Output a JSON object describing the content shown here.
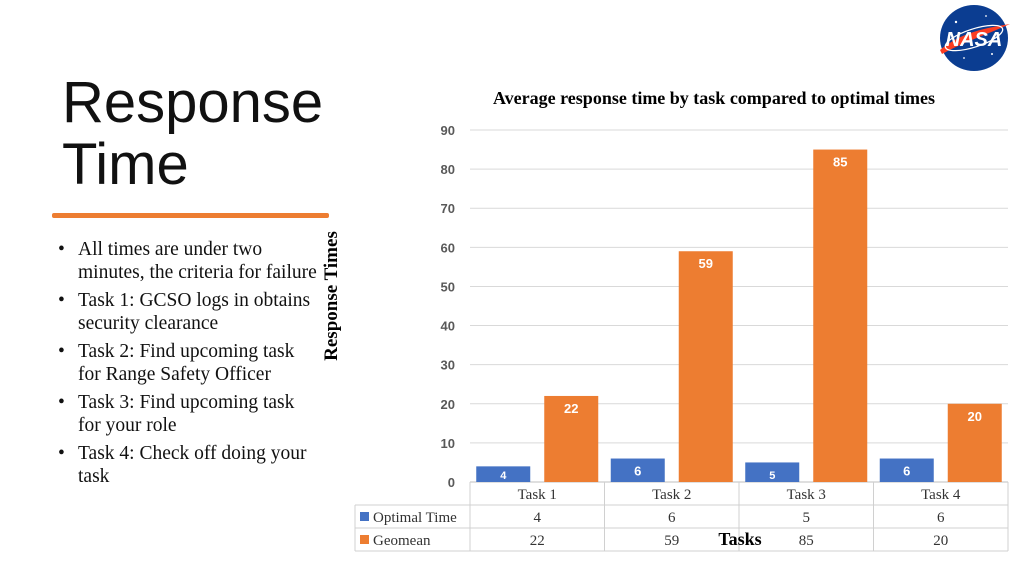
{
  "slide": {
    "title_line1": "Response",
    "title_line2": "Time",
    "bullets": [
      "All times are under two minutes, the criteria for failure",
      "Task 1: GCSO logs in obtains security clearance",
      "Task 2: Find upcoming task for Range Safety Officer",
      "Task 3: Find upcoming task for your role",
      "Task 4: Check off doing your task"
    ],
    "logo_text": "NASA",
    "accent_color": "#ED7D31"
  },
  "chart_data": {
    "type": "bar",
    "title": "Average response time by task compared to optimal times",
    "xlabel": "Tasks",
    "ylabel": "Response Times",
    "categories": [
      "Task 1",
      "Task 2",
      "Task 3",
      "Task 4"
    ],
    "ylim": [
      0,
      90
    ],
    "ytick_step": 10,
    "grid": true,
    "legend": "data-table",
    "series": [
      {
        "name": "Optimal Time",
        "values": [
          4,
          6,
          5,
          6
        ],
        "color": "#4472C4"
      },
      {
        "name": "Geomean",
        "values": [
          22,
          59,
          85,
          20
        ],
        "color": "#ED7D31"
      }
    ]
  }
}
